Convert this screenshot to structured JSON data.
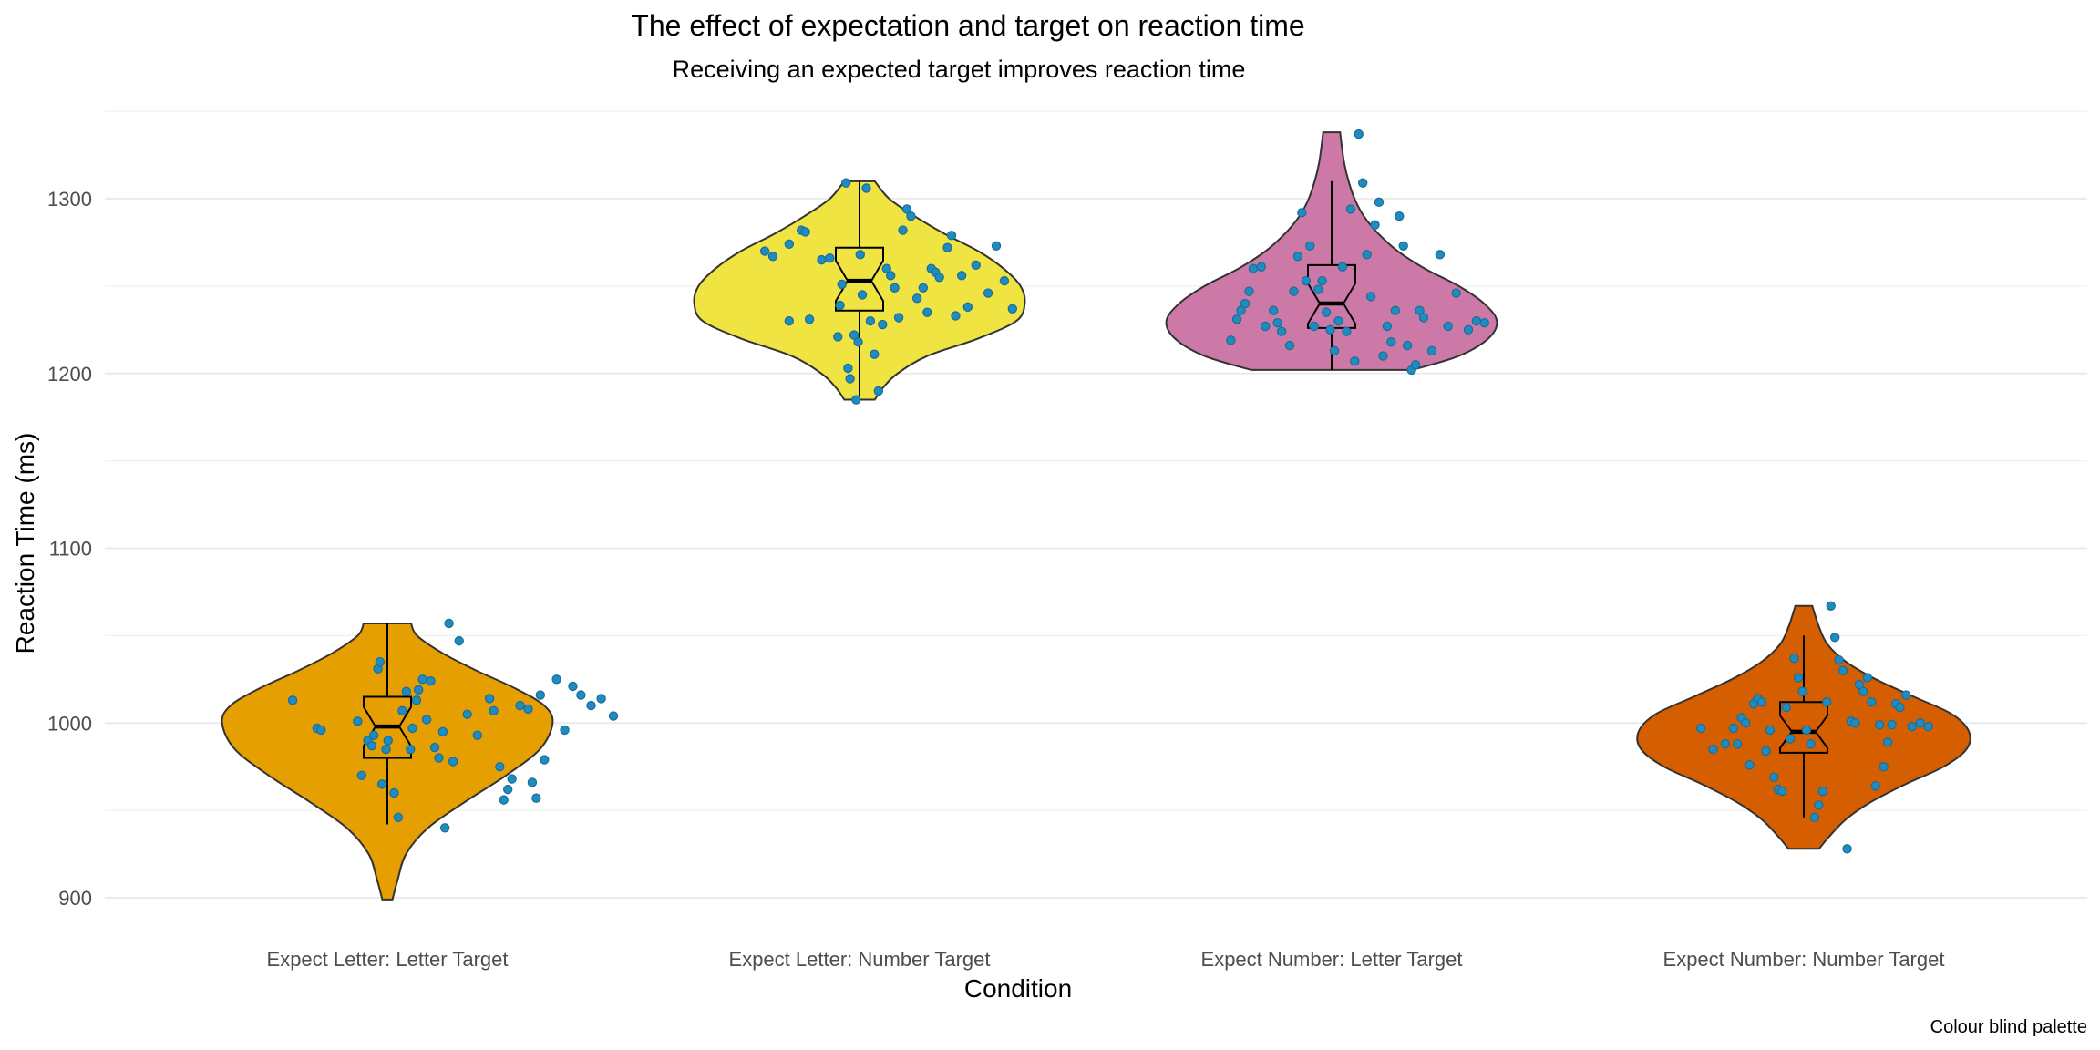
{
  "chart_data": {
    "type": "violin",
    "title": "The effect of expectation and target on reaction time",
    "subtitle": "Receiving an expected target improves reaction time",
    "xlabel": "Condition",
    "ylabel": "Reaction Time (ms)",
    "caption": "Colour blind palette",
    "ylim": [
      880,
      1350
    ],
    "yticks": [
      900,
      1000,
      1100,
      1200,
      1300
    ],
    "grid": true,
    "legend": "none",
    "point_color": "#1f8bbf",
    "categories": [
      "Expect Letter: Letter Target",
      "Expect Letter: Number Target",
      "Expect Number: Letter Target",
      "Expect Number: Number Target"
    ],
    "series": [
      {
        "category": "Expect Letter: Letter Target",
        "fill": "#E69F00",
        "box": {
          "q1": 980,
          "median": 998,
          "q3": 1015,
          "whisker_low": 942,
          "whisker_high": 1057
        },
        "density": [
          [
            899,
            6
          ],
          [
            910,
            12
          ],
          [
            925,
            22
          ],
          [
            940,
            48
          ],
          [
            955,
            92
          ],
          [
            970,
            140
          ],
          [
            985,
            180
          ],
          [
            1000,
            195
          ],
          [
            1010,
            185
          ],
          [
            1020,
            150
          ],
          [
            1030,
            105
          ],
          [
            1040,
            65
          ],
          [
            1050,
            35
          ],
          [
            1057,
            28
          ]
        ],
        "points": [
          [
            -0.42,
            1013
          ],
          [
            -0.3,
            997
          ],
          [
            -0.28,
            996
          ],
          [
            -0.1,
            1001
          ],
          [
            -0.08,
            970
          ],
          [
            -0.05,
            990
          ],
          [
            -0.03,
            987
          ],
          [
            -0.02,
            993
          ],
          [
            0.0,
            1031
          ],
          [
            0.01,
            1035
          ],
          [
            0.02,
            965
          ],
          [
            0.04,
            985
          ],
          [
            0.05,
            990
          ],
          [
            0.08,
            960
          ],
          [
            0.1,
            946
          ],
          [
            0.12,
            1007
          ],
          [
            0.14,
            1018
          ],
          [
            0.16,
            985
          ],
          [
            0.17,
            997
          ],
          [
            0.19,
            1013
          ],
          [
            0.2,
            1019
          ],
          [
            0.22,
            1025
          ],
          [
            0.24,
            1002
          ],
          [
            0.26,
            1024
          ],
          [
            0.28,
            986
          ],
          [
            0.3,
            980
          ],
          [
            0.32,
            995
          ],
          [
            0.33,
            940
          ],
          [
            0.35,
            1057
          ],
          [
            0.37,
            978
          ],
          [
            0.4,
            1047
          ],
          [
            0.44,
            1005
          ],
          [
            0.49,
            993
          ],
          [
            0.55,
            1014
          ],
          [
            0.57,
            1007
          ],
          [
            0.6,
            975
          ],
          [
            0.62,
            956
          ],
          [
            0.64,
            962
          ],
          [
            0.66,
            968
          ],
          [
            0.7,
            1010
          ],
          [
            0.74,
            1008
          ],
          [
            0.76,
            966
          ],
          [
            0.78,
            957
          ],
          [
            0.8,
            1016
          ],
          [
            0.82,
            979
          ],
          [
            0.88,
            1025
          ],
          [
            0.92,
            996
          ],
          [
            0.96,
            1021
          ],
          [
            1.0,
            1016
          ],
          [
            1.05,
            1010
          ],
          [
            1.1,
            1014
          ],
          [
            1.16,
            1004
          ]
        ]
      },
      {
        "category": "Expect Letter: Number Target",
        "fill": "#F0E442",
        "box": {
          "q1": 1236,
          "median": 1253,
          "q3": 1272,
          "whisker_low": 1185,
          "whisker_high": 1310
        },
        "density": [
          [
            1185,
            18
          ],
          [
            1192,
            28
          ],
          [
            1200,
            45
          ],
          [
            1210,
            80
          ],
          [
            1220,
            140
          ],
          [
            1230,
            185
          ],
          [
            1240,
            195
          ],
          [
            1250,
            190
          ],
          [
            1260,
            170
          ],
          [
            1270,
            140
          ],
          [
            1280,
            100
          ],
          [
            1290,
            65
          ],
          [
            1300,
            35
          ],
          [
            1310,
            18
          ]
        ],
        "points": [
          [
            -0.42,
            1270
          ],
          [
            -0.38,
            1267
          ],
          [
            -0.3,
            1274
          ],
          [
            -0.24,
            1282
          ],
          [
            -0.22,
            1281
          ],
          [
            -0.3,
            1230
          ],
          [
            -0.2,
            1231
          ],
          [
            -0.14,
            1265
          ],
          [
            -0.1,
            1266
          ],
          [
            -0.06,
            1221
          ],
          [
            -0.05,
            1239
          ],
          [
            -0.04,
            1251
          ],
          [
            -0.02,
            1309
          ],
          [
            -0.01,
            1203
          ],
          [
            0.0,
            1197
          ],
          [
            0.02,
            1222
          ],
          [
            0.03,
            1185
          ],
          [
            0.04,
            1218
          ],
          [
            0.05,
            1268
          ],
          [
            0.06,
            1245
          ],
          [
            0.08,
            1306
          ],
          [
            0.1,
            1230
          ],
          [
            0.12,
            1211
          ],
          [
            0.14,
            1190
          ],
          [
            0.16,
            1228
          ],
          [
            0.18,
            1260
          ],
          [
            0.2,
            1256
          ],
          [
            0.22,
            1249
          ],
          [
            0.24,
            1232
          ],
          [
            0.26,
            1282
          ],
          [
            0.28,
            1294
          ],
          [
            0.3,
            1290
          ],
          [
            0.33,
            1243
          ],
          [
            0.36,
            1249
          ],
          [
            0.38,
            1235
          ],
          [
            0.4,
            1260
          ],
          [
            0.42,
            1258
          ],
          [
            0.44,
            1255
          ],
          [
            0.48,
            1272
          ],
          [
            0.5,
            1279
          ],
          [
            0.52,
            1233
          ],
          [
            0.55,
            1256
          ],
          [
            0.58,
            1238
          ],
          [
            0.62,
            1262
          ],
          [
            0.68,
            1246
          ],
          [
            0.72,
            1273
          ],
          [
            0.76,
            1253
          ],
          [
            0.8,
            1237
          ]
        ]
      },
      {
        "category": "Expect Number: Letter Target",
        "fill": "#CC79A7",
        "box": {
          "q1": 1226,
          "median": 1240,
          "q3": 1262,
          "whisker_low": 1202,
          "whisker_high": 1310
        },
        "density": [
          [
            1202,
            95
          ],
          [
            1210,
            150
          ],
          [
            1220,
            185
          ],
          [
            1230,
            195
          ],
          [
            1240,
            180
          ],
          [
            1250,
            150
          ],
          [
            1260,
            110
          ],
          [
            1270,
            78
          ],
          [
            1280,
            55
          ],
          [
            1290,
            38
          ],
          [
            1300,
            27
          ],
          [
            1310,
            20
          ],
          [
            1320,
            15
          ],
          [
            1330,
            12
          ],
          [
            1338,
            10
          ]
        ],
        "points": [
          [
            -0.45,
            1219
          ],
          [
            -0.42,
            1231
          ],
          [
            -0.4,
            1236
          ],
          [
            -0.38,
            1240
          ],
          [
            -0.36,
            1247
          ],
          [
            -0.34,
            1260
          ],
          [
            -0.3,
            1261
          ],
          [
            -0.28,
            1227
          ],
          [
            -0.24,
            1236
          ],
          [
            -0.22,
            1229
          ],
          [
            -0.2,
            1224
          ],
          [
            -0.16,
            1216
          ],
          [
            -0.14,
            1247
          ],
          [
            -0.12,
            1267
          ],
          [
            -0.1,
            1292
          ],
          [
            -0.08,
            1253
          ],
          [
            -0.06,
            1273
          ],
          [
            -0.04,
            1227
          ],
          [
            -0.02,
            1248
          ],
          [
            0.0,
            1253
          ],
          [
            0.02,
            1235
          ],
          [
            0.04,
            1225
          ],
          [
            0.06,
            1213
          ],
          [
            0.08,
            1230
          ],
          [
            0.1,
            1261
          ],
          [
            0.12,
            1224
          ],
          [
            0.14,
            1294
          ],
          [
            0.16,
            1207
          ],
          [
            0.18,
            1337
          ],
          [
            0.2,
            1309
          ],
          [
            0.22,
            1268
          ],
          [
            0.24,
            1244
          ],
          [
            0.26,
            1285
          ],
          [
            0.28,
            1298
          ],
          [
            0.3,
            1210
          ],
          [
            0.32,
            1227
          ],
          [
            0.34,
            1218
          ],
          [
            0.36,
            1236
          ],
          [
            0.38,
            1290
          ],
          [
            0.4,
            1273
          ],
          [
            0.42,
            1216
          ],
          [
            0.44,
            1202
          ],
          [
            0.46,
            1205
          ],
          [
            0.48,
            1236
          ],
          [
            0.5,
            1232
          ],
          [
            0.54,
            1213
          ],
          [
            0.58,
            1268
          ],
          [
            0.62,
            1227
          ],
          [
            0.66,
            1246
          ],
          [
            0.72,
            1225
          ],
          [
            0.76,
            1230
          ],
          [
            0.8,
            1229
          ]
        ]
      },
      {
        "category": "Expect Number: Number Target",
        "fill": "#D55E00",
        "box": {
          "q1": 983,
          "median": 995,
          "q3": 1012,
          "whisker_low": 946,
          "whisker_high": 1050
        },
        "density": [
          [
            928,
            18
          ],
          [
            935,
            30
          ],
          [
            945,
            50
          ],
          [
            955,
            80
          ],
          [
            965,
            120
          ],
          [
            975,
            165
          ],
          [
            985,
            192
          ],
          [
            995,
            195
          ],
          [
            1005,
            175
          ],
          [
            1015,
            130
          ],
          [
            1025,
            85
          ],
          [
            1035,
            50
          ],
          [
            1045,
            28
          ],
          [
            1055,
            18
          ],
          [
            1067,
            10
          ]
        ],
        "points": [
          [
            -0.46,
            997
          ],
          [
            -0.4,
            985
          ],
          [
            -0.34,
            988
          ],
          [
            -0.3,
            997
          ],
          [
            -0.28,
            988
          ],
          [
            -0.26,
            1003
          ],
          [
            -0.24,
            1000
          ],
          [
            -0.22,
            976
          ],
          [
            -0.2,
            1011
          ],
          [
            -0.18,
            1014
          ],
          [
            -0.16,
            1012
          ],
          [
            -0.14,
            984
          ],
          [
            -0.12,
            996
          ],
          [
            -0.1,
            969
          ],
          [
            -0.08,
            962
          ],
          [
            -0.06,
            961
          ],
          [
            -0.04,
            1009
          ],
          [
            -0.02,
            991
          ],
          [
            0.0,
            1037
          ],
          [
            0.02,
            1026
          ],
          [
            0.04,
            1018
          ],
          [
            0.06,
            996
          ],
          [
            0.08,
            988
          ],
          [
            0.1,
            946
          ],
          [
            0.12,
            953
          ],
          [
            0.14,
            961
          ],
          [
            0.16,
            1012
          ],
          [
            0.18,
            1067
          ],
          [
            0.2,
            1049
          ],
          [
            0.22,
            1036
          ],
          [
            0.24,
            1030
          ],
          [
            0.26,
            928
          ],
          [
            0.28,
            1001
          ],
          [
            0.3,
            1000
          ],
          [
            0.32,
            1022
          ],
          [
            0.34,
            1018
          ],
          [
            0.36,
            1026
          ],
          [
            0.38,
            1012
          ],
          [
            0.4,
            964
          ],
          [
            0.42,
            999
          ],
          [
            0.44,
            975
          ],
          [
            0.46,
            989
          ],
          [
            0.48,
            999
          ],
          [
            0.5,
            1011
          ],
          [
            0.52,
            1009
          ],
          [
            0.55,
            1016
          ],
          [
            0.58,
            998
          ],
          [
            0.62,
            1000
          ],
          [
            0.66,
            998
          ]
        ]
      }
    ]
  }
}
